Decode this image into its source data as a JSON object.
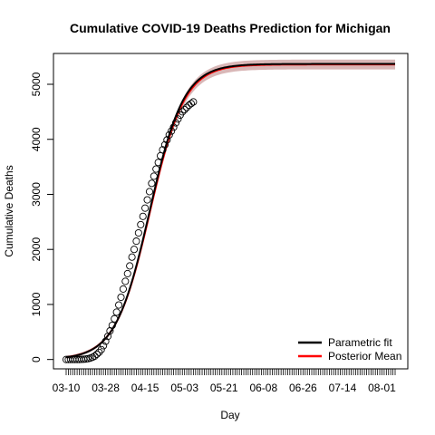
{
  "chart_data": {
    "type": "line",
    "title": "Cumulative COVID-19 Deaths Prediction for Michigan",
    "xlabel": "Day",
    "ylabel": "Cumulative Deaths",
    "x_ticks": [
      "03-10",
      "03-28",
      "04-15",
      "05-03",
      "05-21",
      "06-08",
      "06-26",
      "07-14",
      "08-01"
    ],
    "x_range_days": [
      0,
      150
    ],
    "y_ticks": [
      0,
      1000,
      2000,
      3000,
      4000,
      5000
    ],
    "ylim": [
      -170,
      5560
    ],
    "legend": {
      "position": "bottom-right",
      "entries": [
        {
          "name": "Parametric fit",
          "color": "#000000"
        },
        {
          "name": "Posterior Mean",
          "color": "#ff0000"
        }
      ]
    },
    "series": [
      {
        "name": "Parametric fit",
        "style": "line",
        "color": "#000000",
        "model": "logistic",
        "parameters": {
          "asymptote": 5370,
          "midpoint_day": 38,
          "scale_days": 7.8
        },
        "x_days": [
          0,
          150
        ]
      },
      {
        "name": "Posterior Mean",
        "style": "line",
        "color": "#ff0000",
        "band_color": "#d9b7b7",
        "model": "logistic",
        "parameters": {
          "asymptote": 5360,
          "midpoint_day": 38.2,
          "scale_days": 7.9
        },
        "x_days": [
          0,
          150
        ]
      },
      {
        "name": "Observed",
        "style": "points",
        "color": "#000000",
        "x_days": [
          0,
          1,
          2,
          3,
          4,
          5,
          6,
          7,
          8,
          9,
          10,
          11,
          12,
          13,
          14,
          15,
          16,
          17,
          18,
          19,
          20,
          21,
          22,
          23,
          24,
          25,
          26,
          27,
          28,
          29,
          30,
          31,
          32,
          33,
          34,
          35,
          36,
          37,
          38,
          39,
          40,
          41,
          42,
          43,
          44,
          45,
          46,
          47,
          48,
          49,
          50,
          51,
          52,
          53,
          54,
          55,
          56,
          57,
          58
        ],
        "y": [
          0,
          0,
          0,
          0,
          0,
          0,
          0,
          3,
          5,
          8,
          15,
          25,
          40,
          60,
          95,
          130,
          180,
          250,
          330,
          420,
          520,
          620,
          740,
          860,
          990,
          1130,
          1280,
          1420,
          1560,
          1700,
          1860,
          2000,
          2150,
          2300,
          2450,
          2600,
          2750,
          2900,
          3050,
          3200,
          3330,
          3460,
          3580,
          3700,
          3810,
          3900,
          3990,
          4080,
          4150,
          4220,
          4300,
          4370,
          4440,
          4500,
          4540,
          4580,
          4620,
          4650,
          4680
        ]
      }
    ]
  }
}
